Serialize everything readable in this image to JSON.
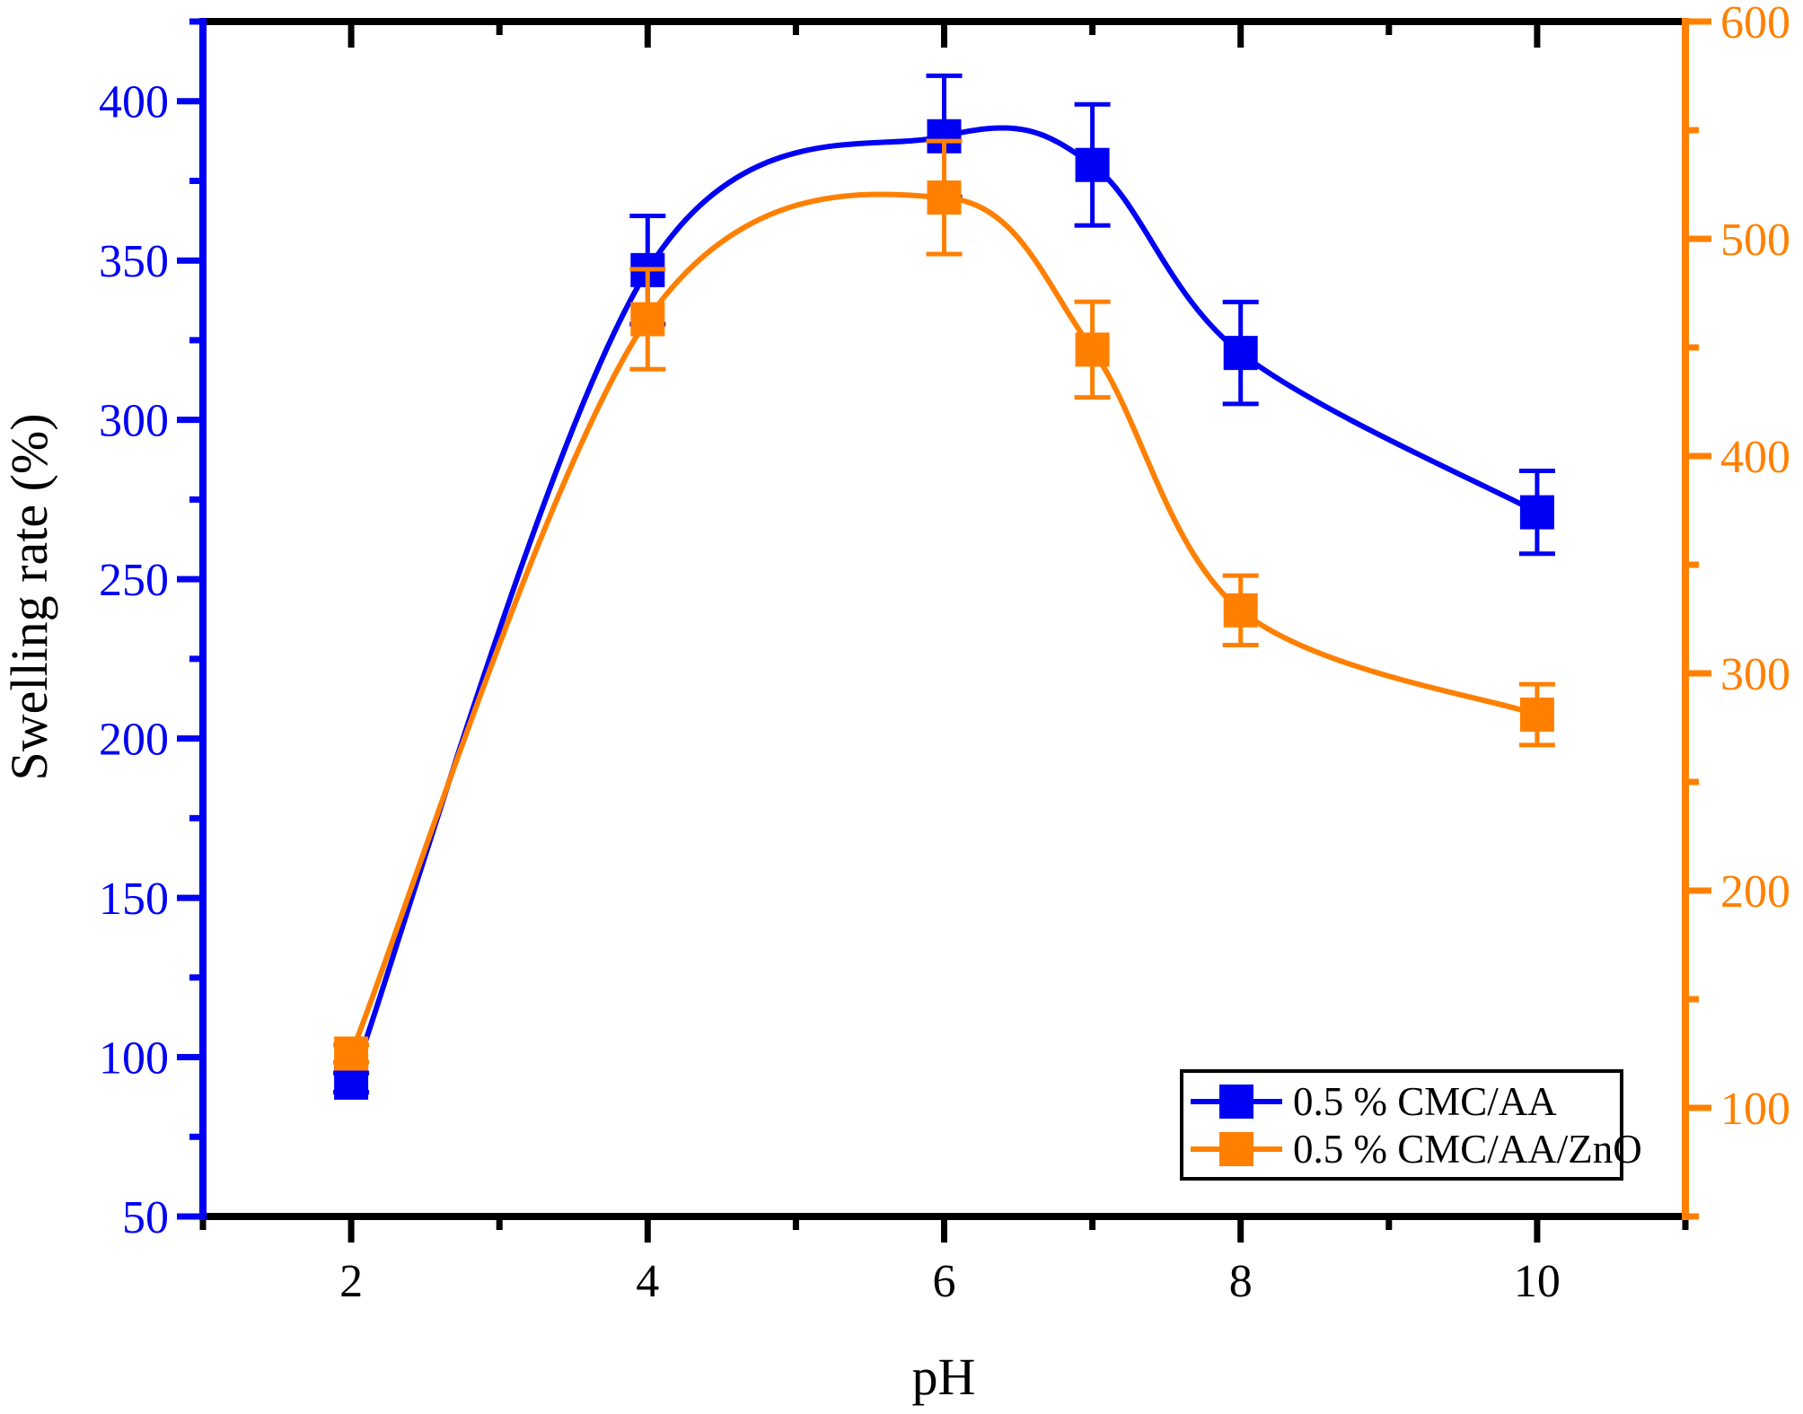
{
  "figure": {
    "background": "#ffffff"
  },
  "chart_data": {
    "type": "line",
    "title": "",
    "xlabel": "pH",
    "ylabel": "Swelling rate (%)",
    "grid": false,
    "axes": {
      "x": {
        "min": 1,
        "max": 11,
        "color": "#000000",
        "major_ticks": [
          2,
          4,
          6,
          8,
          10
        ],
        "minor_ticks": [
          1,
          3,
          5,
          7,
          9,
          11
        ],
        "top_major_ticks": [
          2,
          4,
          6,
          8,
          10
        ],
        "top_minor_ticks": [
          3,
          5,
          7,
          9
        ]
      },
      "left": {
        "min": 50,
        "max": 425,
        "color": "#0000F5",
        "major_ticks": [
          50,
          100,
          150,
          200,
          250,
          300,
          350,
          400
        ],
        "minor_ticks": [
          75,
          125,
          175,
          225,
          275,
          325,
          375,
          425
        ]
      },
      "right": {
        "min": 50,
        "max": 600,
        "color": "#FF8000",
        "major_ticks": [
          100,
          200,
          300,
          400,
          500,
          600
        ],
        "minor_ticks": [
          50,
          150,
          250,
          350,
          450,
          550
        ]
      }
    },
    "series": [
      {
        "name": "0.5 % CMC/AA",
        "slug": "cmc-aa",
        "color": "#0000F5",
        "axis": "left",
        "marker": "square",
        "x": [
          2,
          4,
          6,
          7,
          8,
          10
        ],
        "y": [
          92,
          347,
          389,
          380,
          321,
          271
        ],
        "yerr": [
          3,
          17,
          19,
          19,
          16,
          13
        ]
      },
      {
        "name": "0.5 % CMC/AA/ZnO",
        "slug": "cmc-aa-zno",
        "color": "#FF8000",
        "axis": "right",
        "marker": "square",
        "x": [
          2,
          4,
          6,
          7,
          8,
          10
        ],
        "y": [
          125,
          463,
          519,
          449,
          329,
          281
        ],
        "yerr": [
          4,
          23,
          26,
          22,
          16,
          14
        ]
      }
    ],
    "legend": {
      "position": "bottom-right",
      "border_color": "#000000",
      "background": "#ffffff",
      "entries": [
        "0.5 % CMC/AA",
        "0.5 % CMC/AA/ZnO"
      ]
    }
  }
}
